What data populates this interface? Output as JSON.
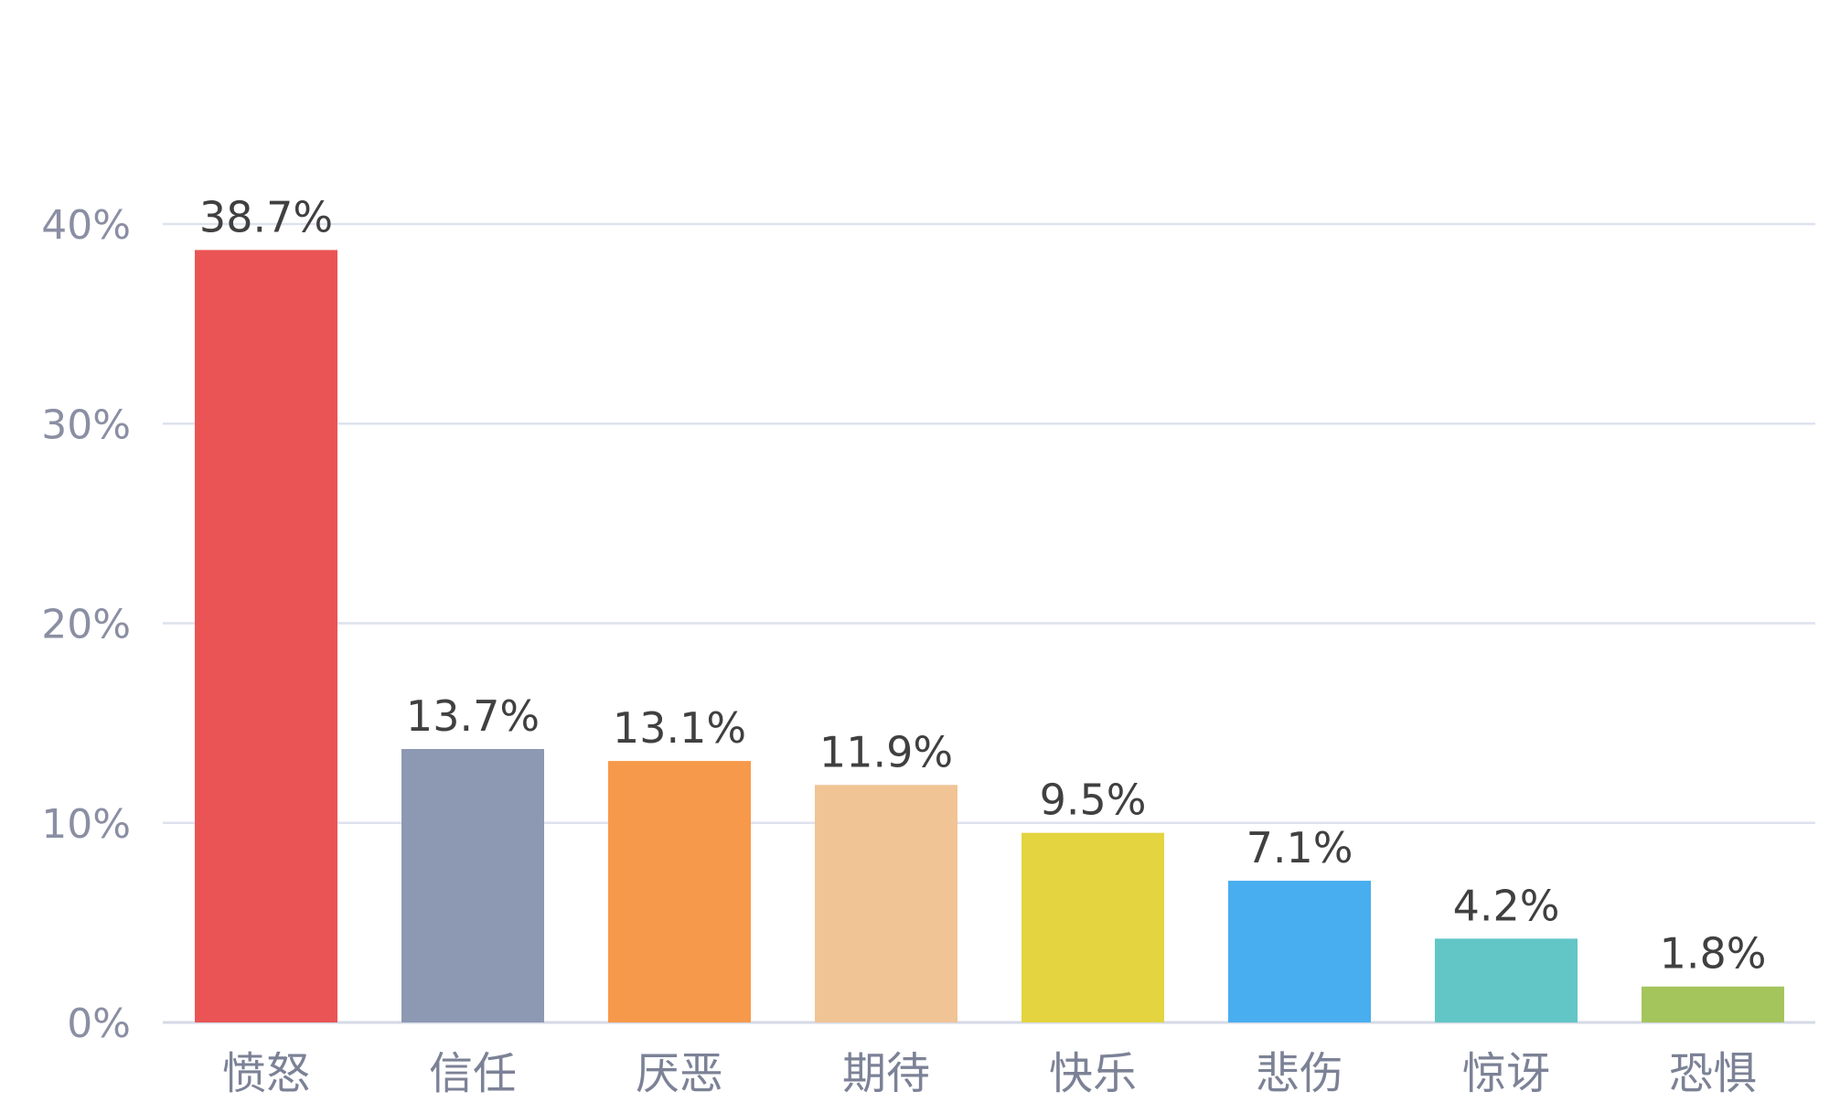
{
  "chart_data": {
    "type": "bar",
    "title": "",
    "xlabel": "",
    "ylabel": "",
    "categories": [
      "愤怒",
      "信任",
      "厌恶",
      "期待",
      "快乐",
      "悲伤",
      "惊讶",
      "恐惧"
    ],
    "values": [
      38.7,
      13.7,
      13.1,
      11.9,
      9.5,
      7.1,
      4.2,
      1.8
    ],
    "value_labels": [
      "38.7%",
      "13.7%",
      "13.1%",
      "11.9%",
      "9.5%",
      "7.1%",
      "4.2%",
      "1.8%"
    ],
    "colors": [
      "#ea5455",
      "#8d98b3",
      "#f7994b",
      "#f0c495",
      "#e3d440",
      "#48aeef",
      "#62c6c7",
      "#a4c45c"
    ],
    "ylim": [
      0,
      40
    ],
    "yticks": [
      0,
      10,
      20,
      30,
      40
    ],
    "ytick_labels": [
      "0%",
      "10%",
      "20%",
      "30%",
      "40%"
    ],
    "grid": true,
    "legend": "none"
  }
}
